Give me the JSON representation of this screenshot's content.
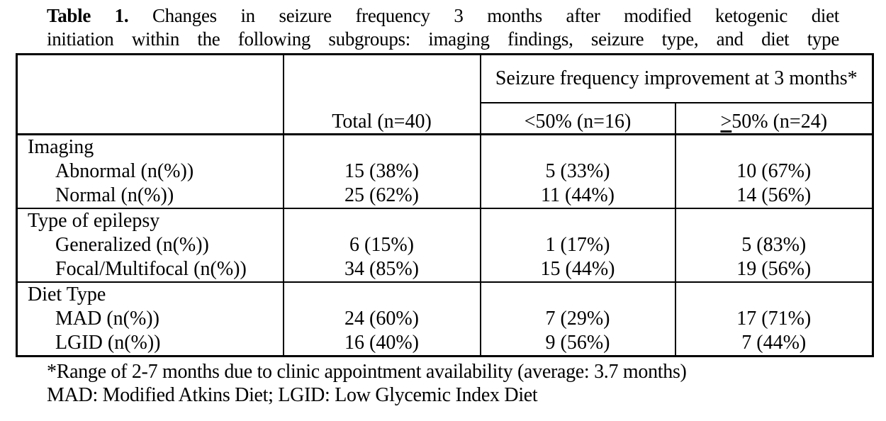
{
  "caption": {
    "label": "Table 1.",
    "line1_rest": " Changes in seizure frequency 3 months after modified ketogenic diet",
    "line2": "initiation within the following subgroups: imaging findings, seizure type, and diet type"
  },
  "table": {
    "header": {
      "total": "Total (n=40)",
      "improvement_span": "Seizure frequency improvement\nat 3 months*",
      "lt50": "<50% (n=16)",
      "ge50_prefix": ">",
      "ge50_rest": "50% (n=24)"
    },
    "sections": [
      {
        "label": "Imaging",
        "rows": [
          {
            "label": "Abnormal (n(%))",
            "total": "15 (38%)",
            "lt50": "5 (33%)",
            "ge50": "10 (67%)"
          },
          {
            "label": "Normal (n(%))",
            "total": "25 (62%)",
            "lt50": "11 (44%)",
            "ge50": "14 (56%)"
          }
        ]
      },
      {
        "label": "Type of epilepsy",
        "rows": [
          {
            "label": "Generalized (n(%))",
            "total": "6 (15%)",
            "lt50": "1 (17%)",
            "ge50": "5 (83%)"
          },
          {
            "label": "Focal/Multifocal (n(%))",
            "total": "34 (85%)",
            "lt50": "15 (44%)",
            "ge50": "19 (56%)"
          }
        ]
      },
      {
        "label": "Diet Type",
        "rows": [
          {
            "label": "MAD (n(%))",
            "total": "24 (60%)",
            "lt50": "7 (29%)",
            "ge50": "17 (71%)"
          },
          {
            "label": "LGID (n(%))",
            "total": "16 (40%)",
            "lt50": "9 (56%)",
            "ge50": "7 (44%)"
          }
        ]
      }
    ]
  },
  "footnotes": [
    "*Range of 2-7 months due to clinic appointment availability (average: 3.7 months)",
    "MAD: Modified Atkins Diet; LGID: Low Glycemic Index Diet"
  ]
}
